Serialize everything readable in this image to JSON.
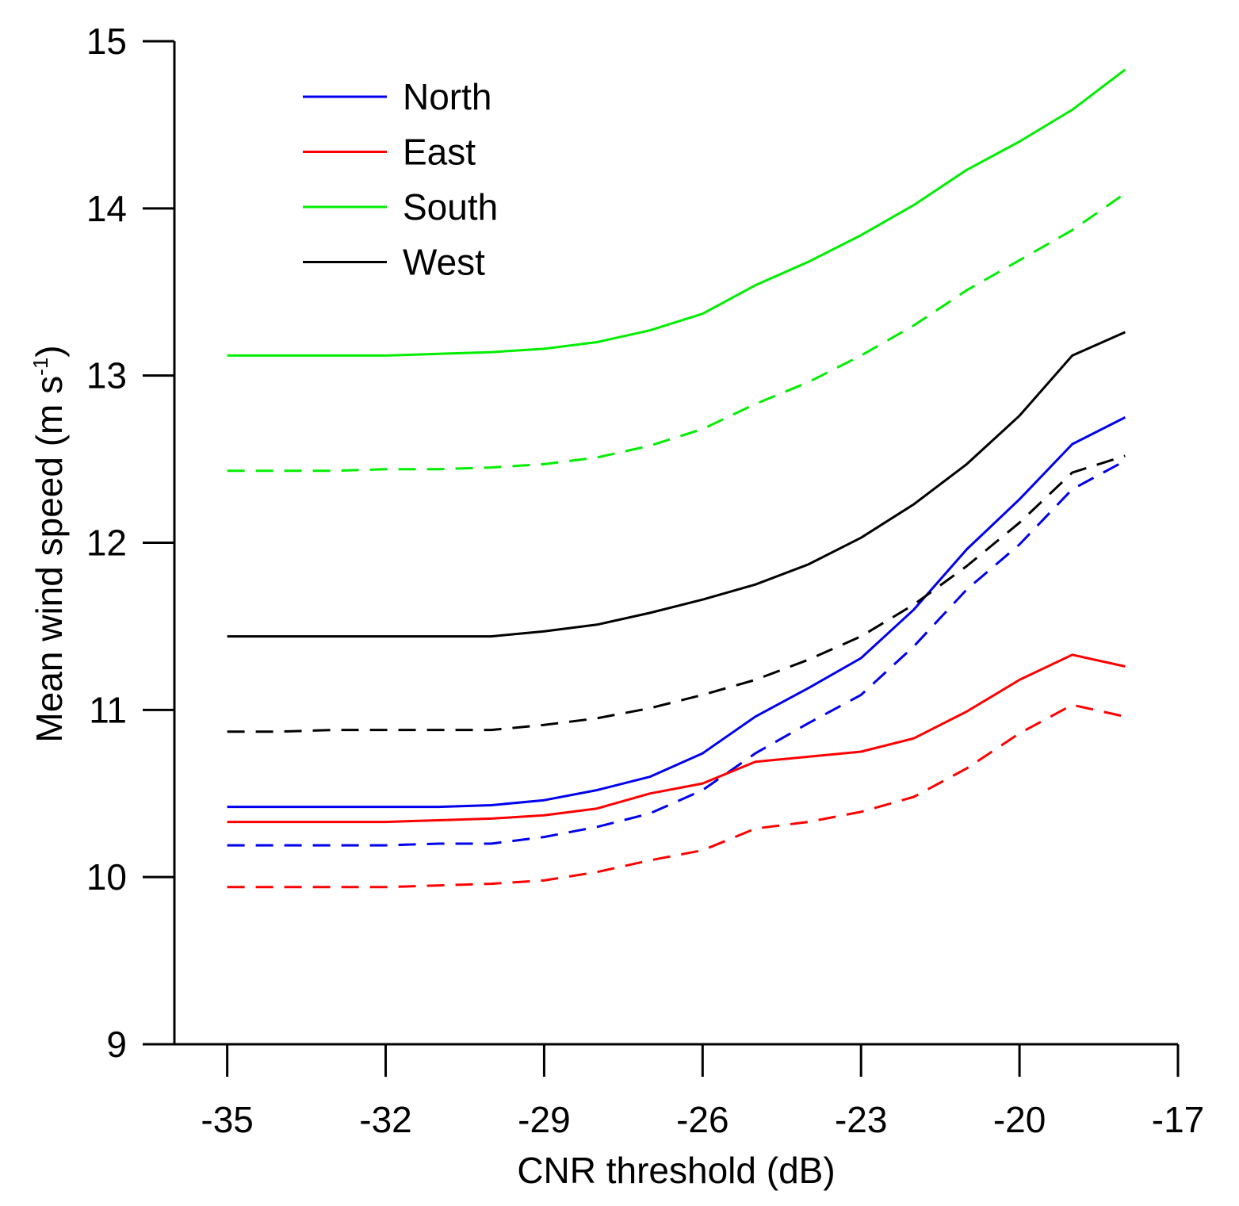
{
  "chart_data": {
    "type": "line",
    "xlabel": "CNR threshold (dB)",
    "ylabel_main": "Mean wind speed  (m s",
    "ylabel_sup": "-1",
    "ylabel_end": ")",
    "xlim": [
      -36,
      -17
    ],
    "ylim": [
      9,
      15
    ],
    "xticks": [
      -35,
      -32,
      -29,
      -26,
      -23,
      -20,
      -17
    ],
    "xtick_labels": [
      "-35",
      "-32",
      "-29",
      "-26",
      "-23",
      "-20",
      "-17"
    ],
    "yticks": [
      9,
      10,
      11,
      12,
      13,
      14,
      15
    ],
    "ytick_labels": [
      "9",
      "10",
      "11",
      "12",
      "13",
      "14",
      "15"
    ],
    "legend_position": "top-left",
    "legend": [
      {
        "name": "North",
        "color": "#0000ee"
      },
      {
        "name": "East",
        "color": "#ff0000"
      },
      {
        "name": "South",
        "color": "#00ee00"
      },
      {
        "name": "West",
        "color": "#000000"
      }
    ],
    "x": [
      -35,
      -34,
      -33,
      -32,
      -31,
      -30,
      -29,
      -28,
      -27,
      -26,
      -25,
      -24,
      -23,
      -22,
      -21,
      -20,
      -19,
      -18
    ],
    "series": [
      {
        "name": "North",
        "style": "solid",
        "color": "#0000ee",
        "values": [
          10.42,
          10.42,
          10.42,
          10.42,
          10.42,
          10.43,
          10.46,
          10.52,
          10.6,
          10.74,
          10.96,
          11.13,
          11.31,
          11.6,
          11.96,
          12.26,
          12.59,
          12.75
        ]
      },
      {
        "name": "North",
        "style": "dashed",
        "color": "#0000ee",
        "values": [
          10.19,
          10.19,
          10.19,
          10.19,
          10.2,
          10.2,
          10.24,
          10.3,
          10.38,
          10.52,
          10.74,
          10.92,
          11.09,
          11.38,
          11.72,
          11.99,
          12.32,
          12.49
        ]
      },
      {
        "name": "East",
        "style": "solid",
        "color": "#ff0000",
        "values": [
          10.33,
          10.33,
          10.33,
          10.33,
          10.34,
          10.35,
          10.37,
          10.41,
          10.5,
          10.56,
          10.69,
          10.72,
          10.75,
          10.83,
          10.99,
          11.18,
          11.33,
          11.26
        ]
      },
      {
        "name": "East",
        "style": "dashed",
        "color": "#ff0000",
        "values": [
          9.94,
          9.94,
          9.94,
          9.94,
          9.95,
          9.96,
          9.98,
          10.03,
          10.1,
          10.16,
          10.29,
          10.33,
          10.39,
          10.48,
          10.65,
          10.86,
          11.03,
          10.96
        ]
      },
      {
        "name": "South",
        "style": "solid",
        "color": "#00ee00",
        "values": [
          13.12,
          13.12,
          13.12,
          13.12,
          13.13,
          13.14,
          13.16,
          13.2,
          13.27,
          13.37,
          13.54,
          13.68,
          13.84,
          14.02,
          14.23,
          14.4,
          14.59,
          14.83
        ]
      },
      {
        "name": "South",
        "style": "dashed",
        "color": "#00ee00",
        "values": [
          12.43,
          12.43,
          12.43,
          12.44,
          12.44,
          12.45,
          12.47,
          12.51,
          12.58,
          12.68,
          12.83,
          12.96,
          13.12,
          13.3,
          13.51,
          13.69,
          13.87,
          14.09
        ]
      },
      {
        "name": "West",
        "style": "solid",
        "color": "#000000",
        "values": [
          11.44,
          11.44,
          11.44,
          11.44,
          11.44,
          11.44,
          11.47,
          11.51,
          11.58,
          11.66,
          11.75,
          11.87,
          12.03,
          12.23,
          12.47,
          12.76,
          13.12,
          13.26
        ]
      },
      {
        "name": "West",
        "style": "dashed",
        "color": "#000000",
        "values": [
          10.87,
          10.87,
          10.88,
          10.88,
          10.88,
          10.88,
          10.91,
          10.95,
          11.01,
          11.09,
          11.18,
          11.3,
          11.44,
          11.63,
          11.86,
          12.12,
          12.42,
          12.52
        ]
      }
    ]
  }
}
